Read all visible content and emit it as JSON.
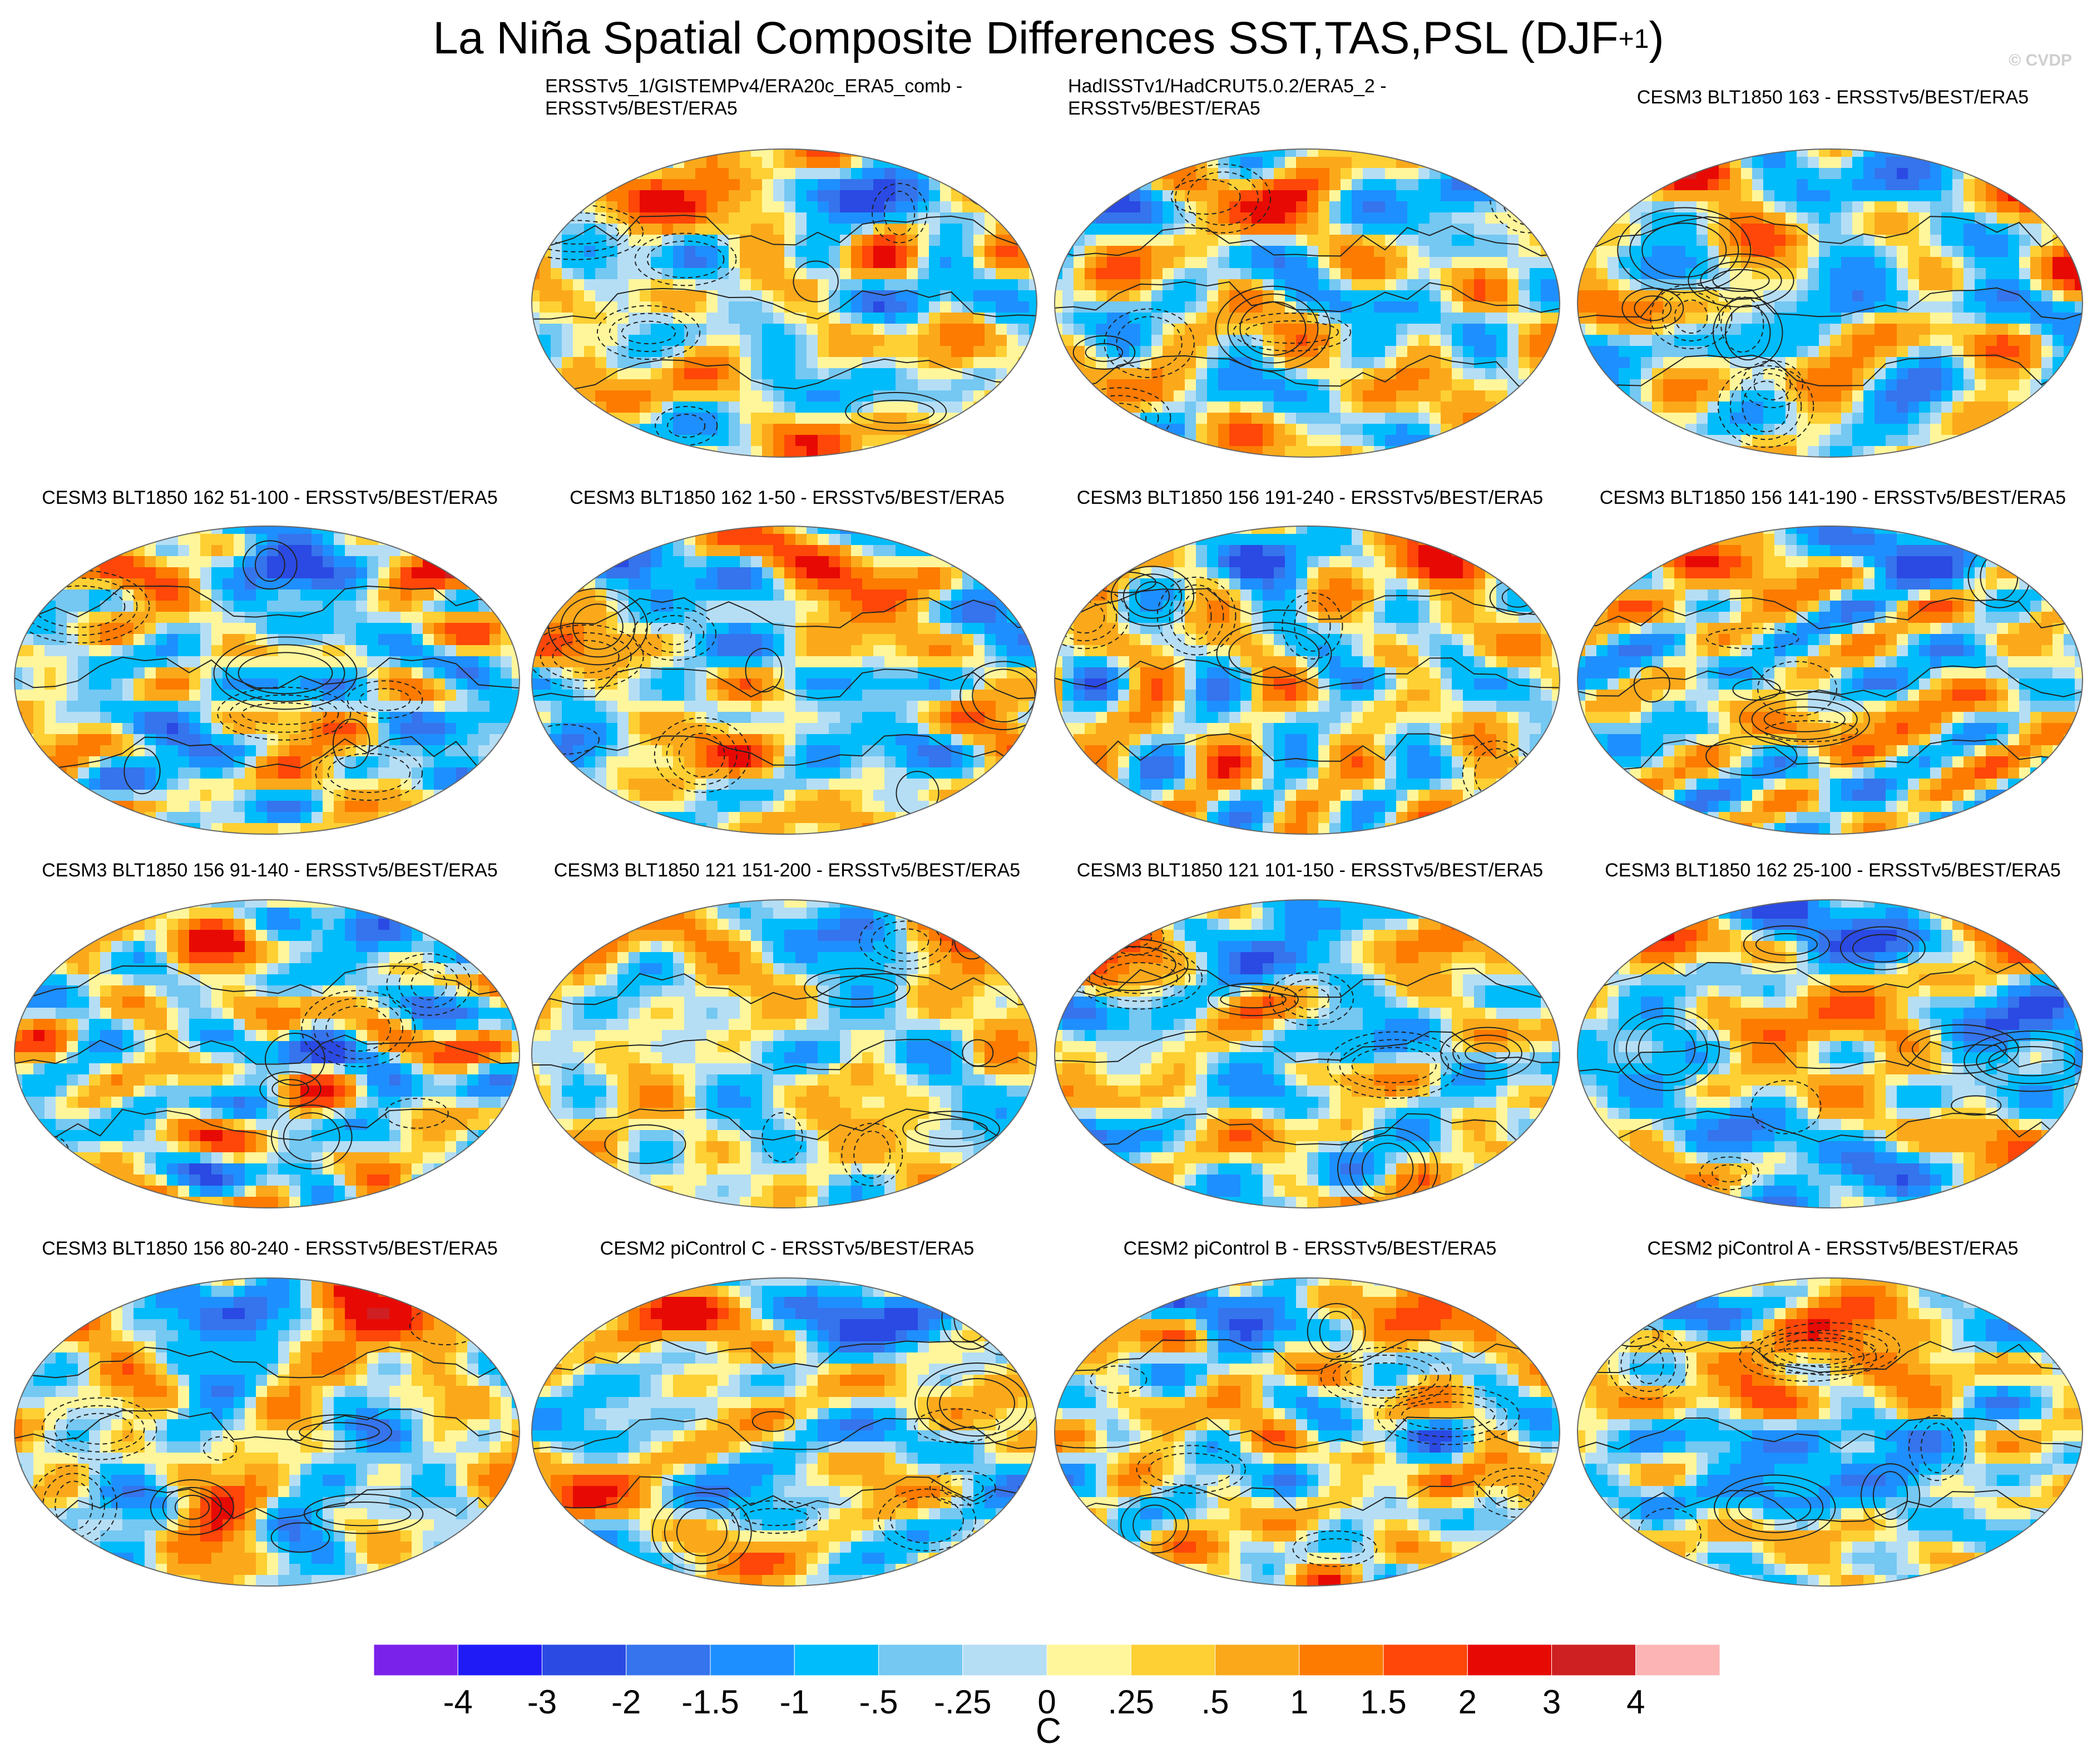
{
  "title": {
    "main": "La Niña Spatial Composite Differences SST,TAS,PSL (DJF",
    "superscript": "+1",
    "close": ")"
  },
  "watermark": "© CVDP",
  "panels": [
    {
      "label_lines": [
        "ERSSTv5_1/GISTEMPv4/ERA20c_ERA5_comb -",
        "ERSSTv5/BEST/ERA5"
      ],
      "seed": 11,
      "bias": 0.05
    },
    {
      "label_lines": [
        "HadISSTv1/HadCRUT5.0.2/ERA5_2 -",
        "ERSSTv5/BEST/ERA5"
      ],
      "seed": 23,
      "bias": 0.08
    },
    {
      "label_lines": [
        "CESM3 BLT1850 163 - ERSSTv5/BEST/ERA5"
      ],
      "seed": 37,
      "bias": -0.02
    },
    {
      "label_lines": [
        "CESM3 BLT1850 162 51-100 - ERSSTv5/BEST/ERA5"
      ],
      "seed": 41,
      "bias": -0.1
    },
    {
      "label_lines": [
        "CESM3 BLT1850 162 1-50 - ERSSTv5/BEST/ERA5"
      ],
      "seed": 53,
      "bias": 0.05
    },
    {
      "label_lines": [
        "CESM3 BLT1850 156 191-240 - ERSSTv5/BEST/ERA5"
      ],
      "seed": 67,
      "bias": 0.08
    },
    {
      "label_lines": [
        "CESM3 BLT1850 156 141-190 - ERSSTv5/BEST/ERA5"
      ],
      "seed": 71,
      "bias": 0.02
    },
    {
      "label_lines": [
        "CESM3 BLT1850 156 91-140 - ERSSTv5/BEST/ERA5"
      ],
      "seed": 83,
      "bias": 0.0
    },
    {
      "label_lines": [
        "CESM3 BLT1850 121 151-200 - ERSSTv5/BEST/ERA5"
      ],
      "seed": 97,
      "bias": 0.04
    },
    {
      "label_lines": [
        "CESM3 BLT1850 121 101-150 - ERSSTv5/BEST/ERA5"
      ],
      "seed": 101,
      "bias": -0.04
    },
    {
      "label_lines": [
        "CESM3 BLT1850 162 25-100 - ERSSTv5/BEST/ERA5"
      ],
      "seed": 113,
      "bias": -0.05
    },
    {
      "label_lines": [
        "CESM3 BLT1850 156 80-240 - ERSSTv5/BEST/ERA5"
      ],
      "seed": 127,
      "bias": 0.06
    },
    {
      "label_lines": [
        "CESM2 piControl C - ERSSTv5/BEST/ERA5"
      ],
      "seed": 131,
      "bias": 0.02
    },
    {
      "label_lines": [
        "CESM2 piControl B - ERSSTv5/BEST/ERA5"
      ],
      "seed": 149,
      "bias": 0.1
    },
    {
      "label_lines": [
        "CESM2 piControl A - ERSSTv5/BEST/ERA5"
      ],
      "seed": 157,
      "bias": 0.0
    }
  ],
  "colorbar": {
    "colors": [
      "#7b22ea",
      "#1f1bf7",
      "#2a4ae3",
      "#3574ec",
      "#1e8fff",
      "#00bcfb",
      "#74c8f2",
      "#b5def5",
      "#fff69b",
      "#fed033",
      "#fba91b",
      "#fd7b01",
      "#fe4708",
      "#e70a04",
      "#ce1f23",
      "#fcb4b4"
    ],
    "labels": [
      "-4",
      "-3",
      "-2",
      "-1.5",
      "-1",
      "-.5",
      "-.25",
      "0",
      ".25",
      ".5",
      "1",
      "1.5",
      "2",
      "3",
      "4"
    ],
    "unit": "C"
  },
  "chart_data": {
    "type": "heatmap",
    "title": "La Niña Spatial Composite Differences SST,TAS,PSL (DJF+1)",
    "variables": [
      "SST",
      "TAS",
      "PSL"
    ],
    "season": "DJF+1",
    "projection": "global Robinson map",
    "fill_variable": "SST/TAS composite difference (C)",
    "contour_variable": "PSL composite difference (solid positive, dashed negative)",
    "contour_levels": [
      -4,
      -3,
      -2,
      -1.5,
      -1,
      -0.5,
      -0.25,
      0,
      0.25,
      0.5,
      1,
      1.5,
      2,
      3,
      4
    ],
    "value_range": [
      -4,
      4
    ],
    "legend": "bottom",
    "panel_count": 15
  }
}
